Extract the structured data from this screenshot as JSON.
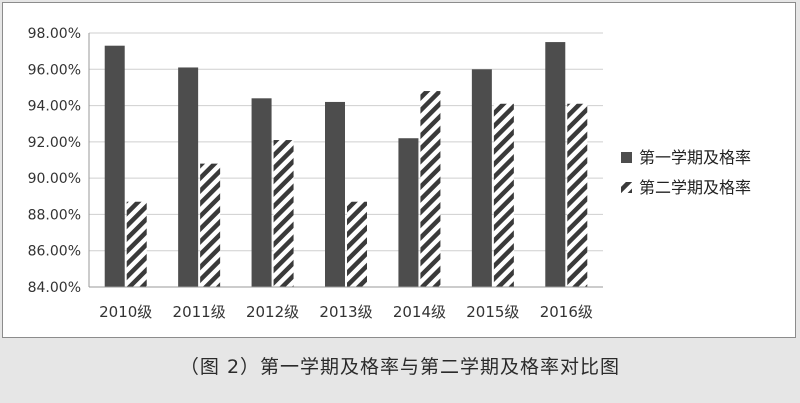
{
  "caption": "（图 2）第一学期及格率与第二学期及格率对比图",
  "colors": {
    "series1": "#4d4d4d",
    "series2_stripe": "#3a3a3a",
    "background": "#e6e6e6",
    "grid": "#cfcfcf"
  },
  "chart_data": {
    "type": "bar",
    "title": "",
    "xlabel": "",
    "ylabel": "",
    "categories": [
      "2010级",
      "2011级",
      "2012级",
      "2013级",
      "2014级",
      "2015级",
      "2016级"
    ],
    "series": [
      {
        "name": "第一学期及格率",
        "values": [
          97.3,
          96.1,
          94.4,
          94.2,
          92.2,
          96.0,
          97.5
        ],
        "pattern": "solid"
      },
      {
        "name": "第二学期及格率",
        "values": [
          88.7,
          90.8,
          92.1,
          88.7,
          94.8,
          94.1,
          94.1
        ],
        "pattern": "diagonal-stripes"
      }
    ],
    "ylim": [
      84,
      98
    ],
    "yticks": [
      84,
      86,
      88,
      90,
      92,
      94,
      96,
      98
    ],
    "ytick_labels": [
      "84.00%",
      "86.00%",
      "88.00%",
      "90.00%",
      "92.00%",
      "94.00%",
      "96.00%",
      "98.00%"
    ],
    "grid": true,
    "legend": "right"
  }
}
